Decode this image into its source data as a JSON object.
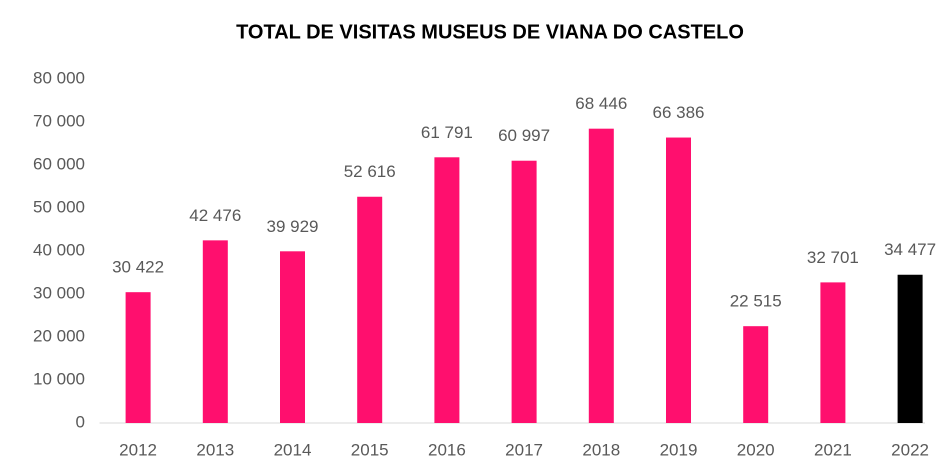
{
  "chart_data": {
    "type": "bar",
    "title": "TOTAL DE VISITAS MUSEUS DE VIANA DO CASTELO",
    "categories": [
      "2012",
      "2013",
      "2014",
      "2015",
      "2016",
      "2017",
      "2018",
      "2019",
      "2020",
      "2021",
      "2022"
    ],
    "values": [
      30422,
      42476,
      39929,
      52616,
      61791,
      60997,
      68446,
      66386,
      22515,
      32701,
      34477
    ],
    "value_labels": [
      "30 422",
      "42 476",
      "39 929",
      "52 616",
      "61 791",
      "60 997",
      "68 446",
      "66 386",
      "22 515",
      "32 701",
      "34 477"
    ],
    "colors": [
      "#ff0f6e",
      "#ff0f6e",
      "#ff0f6e",
      "#ff0f6e",
      "#ff0f6e",
      "#ff0f6e",
      "#ff0f6e",
      "#ff0f6e",
      "#ff0f6e",
      "#ff0f6e",
      "#000000"
    ],
    "ylim": [
      0,
      80000
    ],
    "yticks": [
      {
        "value": 0,
        "label": "0"
      },
      {
        "value": 10000,
        "label": "10 000"
      },
      {
        "value": 20000,
        "label": "20 000"
      },
      {
        "value": 30000,
        "label": "30 000"
      },
      {
        "value": 40000,
        "label": "40 000"
      },
      {
        "value": 50000,
        "label": "50 000"
      },
      {
        "value": 60000,
        "label": "60 000"
      },
      {
        "value": 70000,
        "label": "70 000"
      },
      {
        "value": 80000,
        "label": "80 000"
      }
    ],
    "grid": false
  }
}
